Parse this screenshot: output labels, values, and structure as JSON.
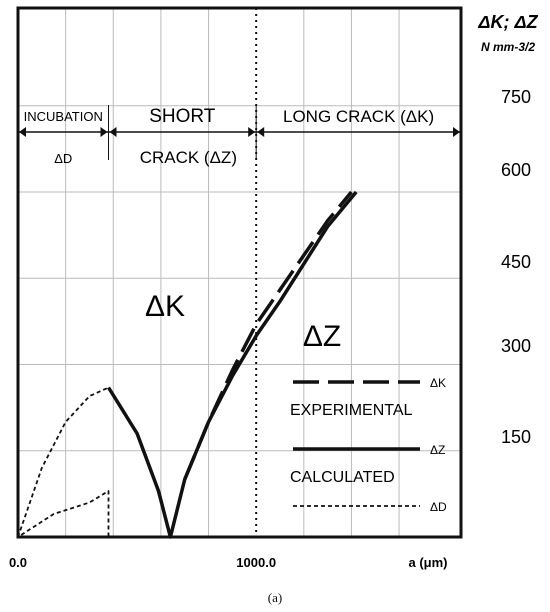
{
  "chart_data": {
    "type": "line",
    "x_unit_label": "a (μm)",
    "x_ticks": [
      "0.0",
      "1000.0"
    ],
    "x_tick_values": [
      0,
      1000
    ],
    "y_title": "ΔK; ΔZ",
    "y_unit": "N mm-3/2",
    "y_ticks": [
      150,
      300,
      450,
      600,
      750
    ],
    "xlim": [
      0,
      1860
    ],
    "ylim": [
      0,
      920
    ],
    "grid": true,
    "vertical_marker_x": 1000,
    "regions": [
      {
        "label": "INCUBATION",
        "sub": "ΔD",
        "x_start": 0,
        "x_end": 380
      },
      {
        "label": "SHORT",
        "sub": "CRACK (ΔZ)",
        "x_start": 380,
        "x_end": 1000
      },
      {
        "label": "LONG CRACK (ΔK)",
        "sub": "",
        "x_start": 1000,
        "x_end": 1860
      }
    ],
    "annotations": [
      "ΔK",
      "ΔZ"
    ],
    "series": [
      {
        "name": "ΔK",
        "style": "dashed",
        "points": [
          [
            700,
            100
          ],
          [
            800,
            200
          ],
          [
            900,
            290
          ],
          [
            1000,
            370
          ],
          [
            1100,
            430
          ],
          [
            1200,
            490
          ],
          [
            1300,
            550
          ],
          [
            1400,
            600
          ]
        ]
      },
      {
        "name": "ΔZ",
        "style": "solid",
        "points": [
          [
            380,
            260
          ],
          [
            500,
            180
          ],
          [
            590,
            80
          ],
          [
            640,
            0
          ],
          [
            700,
            100
          ],
          [
            800,
            200
          ],
          [
            900,
            280
          ],
          [
            1000,
            350
          ],
          [
            1100,
            410
          ],
          [
            1200,
            475
          ],
          [
            1300,
            540
          ],
          [
            1420,
            600
          ]
        ]
      },
      {
        "name": "ΔD",
        "style": "dotted",
        "points": [
          [
            0,
            0
          ],
          [
            100,
            120
          ],
          [
            200,
            200
          ],
          [
            300,
            245
          ],
          [
            380,
            260
          ]
        ]
      },
      {
        "name": "ΔD",
        "style": "dotted",
        "points": [
          [
            0,
            0
          ],
          [
            380,
            0
          ],
          [
            380,
            80
          ],
          [
            300,
            60
          ],
          [
            150,
            40
          ],
          [
            0,
            0
          ]
        ]
      }
    ],
    "legend": {
      "placement": "bottom-right",
      "entries": [
        {
          "symbol": "ΔK",
          "style": "dashed",
          "caption": "EXPERIMENTAL"
        },
        {
          "symbol": "ΔZ",
          "style": "solid",
          "caption": "CALCULATED"
        },
        {
          "symbol": "ΔD",
          "style": "dotted",
          "caption": ""
        }
      ]
    }
  },
  "caption": "(a)"
}
